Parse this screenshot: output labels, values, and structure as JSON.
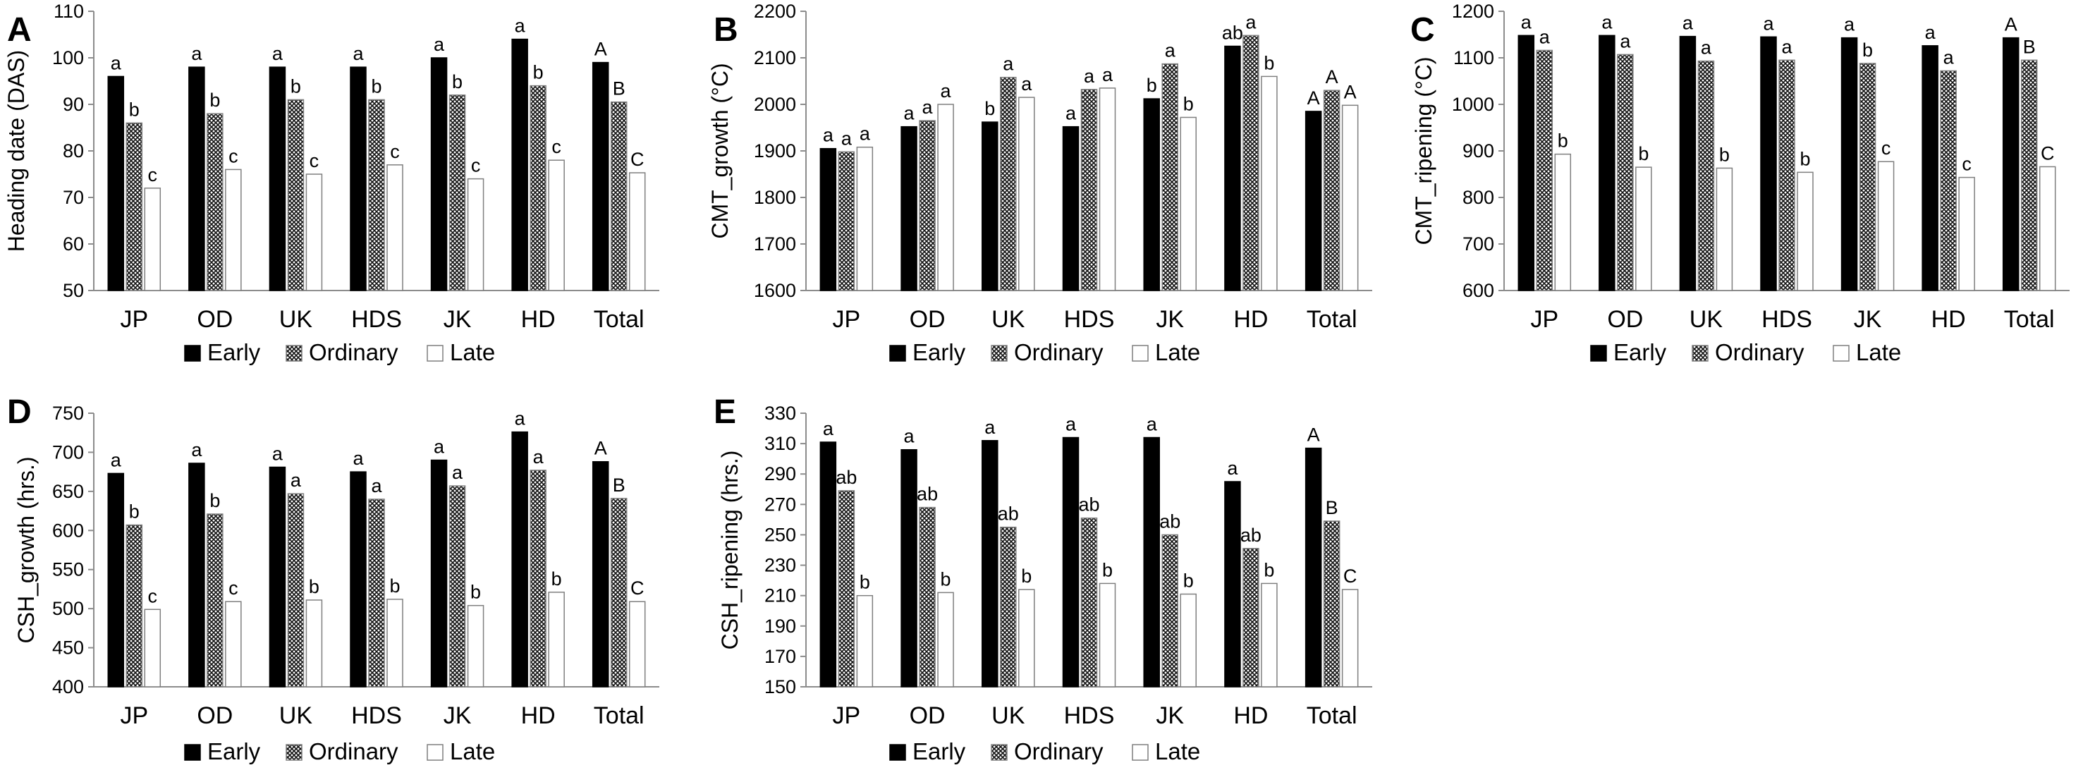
{
  "colors": {
    "early": "#000000",
    "ordinary_pattern": "crosshatch",
    "late": "#ffffff",
    "axis": "#8c8c8c",
    "bar_outline": "#7f7f7f"
  },
  "legend": {
    "entries": [
      "Early",
      "Ordinary",
      "Late"
    ]
  },
  "chart_data": [
    {
      "panel": "A",
      "type": "bar",
      "ylabel": "Heading date (DAS)",
      "ylim": [
        50,
        110
      ],
      "yticks": [
        50,
        60,
        70,
        80,
        90,
        100,
        110
      ],
      "categories": [
        "JP",
        "OD",
        "UK",
        "HDS",
        "JK",
        "HD",
        "Total"
      ],
      "series": [
        {
          "name": "Early",
          "values": [
            96,
            98,
            98,
            98,
            100,
            104,
            99
          ],
          "labels": [
            "a",
            "a",
            "a",
            "a",
            "a",
            "a",
            "A"
          ]
        },
        {
          "name": "Ordinary",
          "values": [
            86,
            88,
            91,
            91,
            92,
            94,
            90.5
          ],
          "labels": [
            "b",
            "b",
            "b",
            "b",
            "b",
            "b",
            "B"
          ]
        },
        {
          "name": "Late",
          "values": [
            72,
            76,
            75,
            77,
            74,
            78,
            75.3
          ],
          "labels": [
            "c",
            "c",
            "c",
            "c",
            "c",
            "c",
            "C"
          ]
        }
      ]
    },
    {
      "panel": "B",
      "type": "bar",
      "ylabel": "CMT_growth (°C)",
      "ylim": [
        1600,
        2200
      ],
      "yticks": [
        1600,
        1700,
        1800,
        1900,
        2000,
        2100,
        2200
      ],
      "categories": [
        "JP",
        "OD",
        "UK",
        "HDS",
        "JK",
        "HD",
        "Total"
      ],
      "series": [
        {
          "name": "Early",
          "values": [
            1905,
            1952,
            1962,
            1952,
            2012,
            2125,
            1985
          ],
          "labels": [
            "a",
            "a",
            "b",
            "a",
            "b",
            "ab",
            "A"
          ]
        },
        {
          "name": "Ordinary",
          "values": [
            1898,
            1965,
            2058,
            2032,
            2087,
            2148,
            2030
          ],
          "labels": [
            "a",
            "a",
            "a",
            "a",
            "a",
            "a",
            "A"
          ]
        },
        {
          "name": "Late",
          "values": [
            1908,
            2000,
            2015,
            2035,
            1972,
            2060,
            1998
          ],
          "labels": [
            "a",
            "a",
            "a",
            "a",
            "b",
            "b",
            "A"
          ]
        }
      ]
    },
    {
      "panel": "C",
      "type": "bar",
      "ylabel": "CMT_ripening (°C)",
      "ylim": [
        600,
        1200
      ],
      "yticks": [
        600,
        700,
        800,
        900,
        1000,
        1100,
        1200
      ],
      "categories": [
        "JP",
        "OD",
        "UK",
        "HDS",
        "JK",
        "HD",
        "Total"
      ],
      "series": [
        {
          "name": "Early",
          "values": [
            1148,
            1148,
            1146,
            1145,
            1143,
            1126,
            1143
          ],
          "labels": [
            "a",
            "a",
            "a",
            "a",
            "a",
            "a",
            "A"
          ]
        },
        {
          "name": "Ordinary",
          "values": [
            1116,
            1107,
            1093,
            1095,
            1088,
            1072,
            1095
          ],
          "labels": [
            "a",
            "a",
            "a",
            "a",
            "b",
            "a",
            "B"
          ]
        },
        {
          "name": "Late",
          "values": [
            893,
            865,
            863,
            854,
            877,
            843,
            866
          ],
          "labels": [
            "b",
            "b",
            "b",
            "b",
            "c",
            "c",
            "C"
          ]
        }
      ]
    },
    {
      "panel": "D",
      "type": "bar",
      "ylabel": "CSH_growth (hrs.)",
      "ylim": [
        400,
        750
      ],
      "yticks": [
        400,
        450,
        500,
        550,
        600,
        650,
        700,
        750
      ],
      "categories": [
        "JP",
        "OD",
        "UK",
        "HDS",
        "JK",
        "HD",
        "Total"
      ],
      "series": [
        {
          "name": "Early",
          "values": [
            673,
            686,
            681,
            675,
            690,
            726,
            688
          ],
          "labels": [
            "a",
            "a",
            "a",
            "a",
            "a",
            "a",
            "A"
          ]
        },
        {
          "name": "Ordinary",
          "values": [
            607,
            621,
            647,
            640,
            657,
            677,
            641
          ],
          "labels": [
            "b",
            "b",
            "a",
            "a",
            "a",
            "a",
            "B"
          ]
        },
        {
          "name": "Late",
          "values": [
            499,
            509,
            511,
            512,
            504,
            521,
            509
          ],
          "labels": [
            "c",
            "c",
            "b",
            "b",
            "b",
            "b",
            "C"
          ]
        }
      ]
    },
    {
      "panel": "E",
      "type": "bar",
      "ylabel": "CSH_ripening (hrs.)",
      "ylim": [
        150,
        330
      ],
      "yticks": [
        150,
        170,
        190,
        210,
        230,
        250,
        270,
        290,
        310,
        330
      ],
      "categories": [
        "JP",
        "OD",
        "UK",
        "HDS",
        "JK",
        "HD",
        "Total"
      ],
      "series": [
        {
          "name": "Early",
          "values": [
            311,
            306,
            312,
            314,
            314,
            285,
            307
          ],
          "labels": [
            "a",
            "a",
            "a",
            "a",
            "a",
            "a",
            "A"
          ]
        },
        {
          "name": "Ordinary",
          "values": [
            279,
            268,
            255,
            261,
            250,
            241,
            259
          ],
          "labels": [
            "ab",
            "ab",
            "ab",
            "ab",
            "ab",
            "ab",
            "B"
          ]
        },
        {
          "name": "Late",
          "values": [
            210,
            212,
            214,
            218,
            211,
            218,
            214
          ],
          "labels": [
            "b",
            "b",
            "b",
            "b",
            "b",
            "b",
            "C"
          ]
        }
      ]
    }
  ]
}
